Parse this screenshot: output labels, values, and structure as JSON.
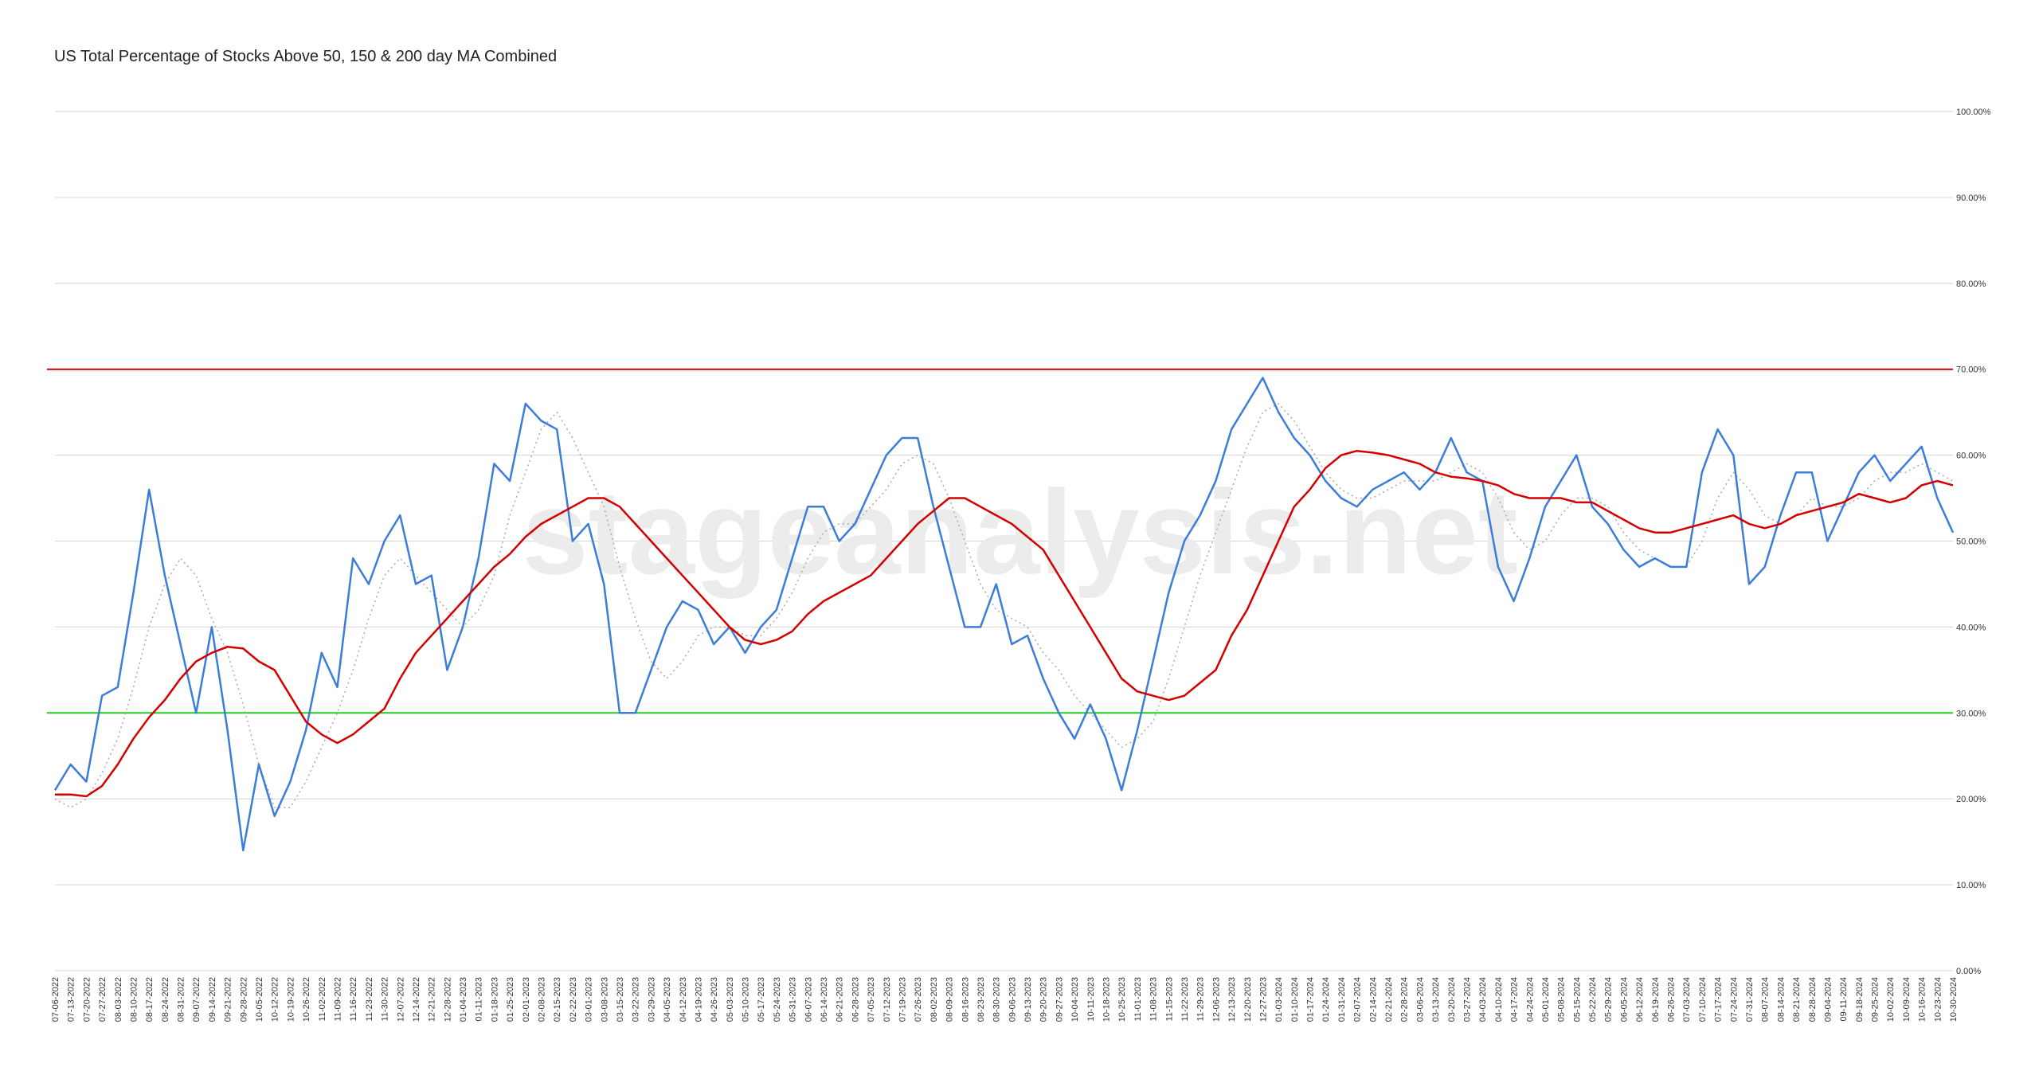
{
  "chart_data": {
    "type": "line",
    "title": "US Total Percentage of Stocks Above 50, 150 & 200 day MA Combined",
    "watermark": "stageanalysis.net",
    "categories": [
      "07-06-2022",
      "07-13-2022",
      "07-20-2022",
      "07-27-2022",
      "08-03-2022",
      "08-10-2022",
      "08-17-2022",
      "08-24-2022",
      "08-31-2022",
      "09-07-2022",
      "09-14-2022",
      "09-21-2022",
      "09-28-2022",
      "10-05-2022",
      "10-12-2022",
      "10-19-2022",
      "10-26-2022",
      "11-02-2022",
      "11-09-2022",
      "11-16-2022",
      "11-23-2022",
      "11-30-2022",
      "12-07-2022",
      "12-14-2022",
      "12-21-2022",
      "12-28-2022",
      "01-04-2023",
      "01-11-2023",
      "01-18-2023",
      "01-25-2023",
      "02-01-2023",
      "02-08-2023",
      "02-15-2023",
      "02-22-2023",
      "03-01-2023",
      "03-08-2023",
      "03-15-2023",
      "03-22-2023",
      "03-29-2023",
      "04-05-2023",
      "04-12-2023",
      "04-19-2023",
      "04-26-2023",
      "05-03-2023",
      "05-10-2023",
      "05-17-2023",
      "05-24-2023",
      "05-31-2023",
      "06-07-2023",
      "06-14-2023",
      "06-21-2023",
      "06-28-2023",
      "07-05-2023",
      "07-12-2023",
      "07-19-2023",
      "07-26-2023",
      "08-02-2023",
      "08-09-2023",
      "08-16-2023",
      "08-23-2023",
      "08-30-2023",
      "09-06-2023",
      "09-13-2023",
      "09-20-2023",
      "09-27-2023",
      "10-04-2023",
      "10-11-2023",
      "10-18-2023",
      "10-25-2023",
      "11-01-2023",
      "11-08-2023",
      "11-15-2023",
      "11-22-2023",
      "11-29-2023",
      "12-06-2023",
      "12-13-2023",
      "12-20-2023",
      "12-27-2023",
      "01-03-2024",
      "01-10-2024",
      "01-17-2024",
      "01-24-2024",
      "01-31-2024",
      "02-07-2024",
      "02-14-2024",
      "02-21-2024",
      "02-28-2024",
      "03-06-2024",
      "03-13-2024",
      "03-20-2024",
      "03-27-2024",
      "04-03-2024",
      "04-10-2024",
      "04-17-2024",
      "04-24-2024",
      "05-01-2024",
      "05-08-2024",
      "05-15-2024",
      "05-22-2024",
      "05-29-2024",
      "06-05-2024",
      "06-12-2024",
      "06-19-2024",
      "06-26-2024",
      "07-03-2024",
      "07-10-2024",
      "07-17-2024",
      "07-24-2024",
      "07-31-2024",
      "08-07-2024",
      "08-14-2024",
      "08-21-2024",
      "08-28-2024",
      "09-04-2024",
      "09-11-2024",
      "09-18-2024",
      "09-25-2024",
      "10-02-2024",
      "10-09-2024",
      "10-16-2024",
      "10-23-2024",
      "10-30-2024"
    ],
    "series": [
      {
        "color": "#aaaaaa",
        "dashed": true,
        "values": [
          20,
          19,
          20,
          23,
          27,
          33,
          40,
          45,
          48,
          46,
          41,
          37,
          31,
          24,
          19,
          19,
          22,
          26,
          30,
          35,
          41,
          46,
          48,
          46,
          44,
          42,
          40,
          42,
          46,
          53,
          58,
          63,
          65,
          62,
          58,
          54,
          47,
          41,
          36,
          34,
          36,
          39,
          40,
          40,
          39,
          39,
          41,
          44,
          48,
          51,
          52,
          52,
          54,
          56,
          59,
          60,
          59,
          55,
          50,
          45,
          42,
          41,
          40,
          37,
          35,
          32,
          30,
          28,
          26,
          27,
          29,
          34,
          40,
          46,
          51,
          56,
          61,
          65,
          66,
          64,
          61,
          58,
          56,
          55,
          55,
          56,
          57,
          57,
          57,
          58,
          59,
          58,
          55,
          51,
          49,
          50,
          53,
          55,
          55,
          54,
          51,
          49,
          48,
          47,
          47,
          50,
          55,
          58,
          56,
          53,
          52,
          53,
          55,
          54,
          54,
          55,
          57,
          58,
          58,
          59,
          58,
          57
        ]
      },
      {
        "color": "#3b7dd8",
        "dashed": false,
        "values": [
          21,
          24,
          22,
          32,
          33,
          44,
          56,
          46,
          38,
          30,
          40,
          28,
          14,
          24,
          18,
          22,
          28,
          37,
          33,
          48,
          45,
          50,
          53,
          45,
          46,
          35,
          40,
          48,
          59,
          57,
          66,
          64,
          63,
          50,
          52,
          45,
          30,
          30,
          35,
          40,
          43,
          42,
          38,
          40,
          37,
          40,
          42,
          48,
          54,
          54,
          50,
          52,
          56,
          60,
          62,
          62,
          54,
          47,
          40,
          40,
          45,
          38,
          39,
          34,
          30,
          27,
          31,
          27,
          21,
          28,
          36,
          44,
          50,
          53,
          57,
          63,
          66,
          69,
          65,
          62,
          60,
          57,
          55,
          54,
          56,
          57,
          58,
          56,
          58,
          62,
          58,
          57,
          47,
          43,
          48,
          54,
          57,
          60,
          54,
          52,
          49,
          47,
          48,
          47,
          47,
          58,
          63,
          60,
          45,
          47,
          53,
          58,
          58,
          50,
          54,
          58,
          60,
          57,
          59,
          61,
          55,
          51
        ]
      },
      {
        "color": "#d40000",
        "dashed": false,
        "values": [
          20.5,
          20.5,
          20.3,
          21.5,
          24,
          27,
          29.5,
          31.5,
          34,
          36,
          37,
          37.7,
          37.5,
          36,
          35,
          32,
          29,
          27.5,
          26.5,
          27.5,
          29,
          30.5,
          34,
          37,
          39,
          41,
          43,
          45,
          47,
          48.5,
          50.5,
          52,
          53,
          54,
          55,
          55,
          54,
          52,
          50,
          48,
          46,
          44,
          42,
          40,
          38.5,
          38,
          38.5,
          39.5,
          41.5,
          43,
          44,
          45,
          46,
          48,
          50,
          52,
          53.5,
          55,
          55,
          54,
          53,
          52,
          50.5,
          49,
          46,
          43,
          40,
          37,
          34,
          32.5,
          32,
          31.5,
          32,
          33.5,
          35,
          39,
          42,
          46,
          50,
          54,
          56,
          58.5,
          60,
          60.5,
          60.3,
          60,
          59.5,
          59,
          58,
          57.5,
          57.3,
          57,
          56.5,
          55.5,
          55,
          55,
          55,
          54.5,
          54.5,
          53.5,
          52.5,
          51.5,
          51,
          51,
          51.5,
          52,
          52.5,
          53,
          52,
          51.5,
          52,
          53,
          53.5,
          54,
          54.5,
          55.5,
          55,
          54.5,
          55,
          56.5,
          57,
          56.5
        ]
      }
    ],
    "reference_lines": [
      {
        "value": 70,
        "color": "#cc0000"
      },
      {
        "value": 30,
        "color": "#22cc22"
      }
    ],
    "ylim": [
      0,
      100
    ],
    "yticks": [
      {
        "value": 0,
        "label": "0.00%"
      },
      {
        "value": 10,
        "label": "10.00%"
      },
      {
        "value": 20,
        "label": "20.00%"
      },
      {
        "value": 30,
        "label": "30.00%"
      },
      {
        "value": 40,
        "label": "40.00%"
      },
      {
        "value": 50,
        "label": "50.00%"
      },
      {
        "value": 60,
        "label": "60.00%"
      },
      {
        "value": 70,
        "label": "70.00%"
      },
      {
        "value": 80,
        "label": "80.00%"
      },
      {
        "value": 90,
        "label": "90.00%"
      },
      {
        "value": 100,
        "label": "100.00%"
      }
    ],
    "grid": true
  }
}
